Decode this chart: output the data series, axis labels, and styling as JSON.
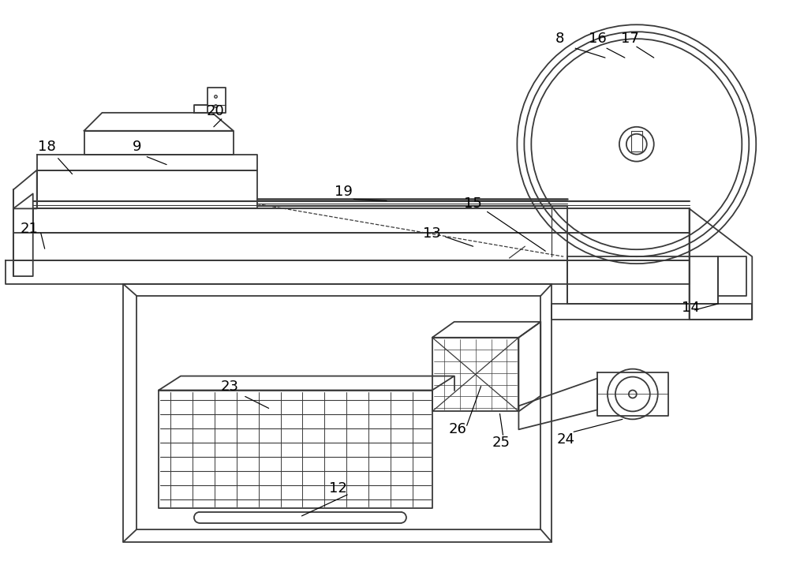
{
  "bg_color": "#ffffff",
  "line_color": "#3a3a3a",
  "line_width": 1.3
}
